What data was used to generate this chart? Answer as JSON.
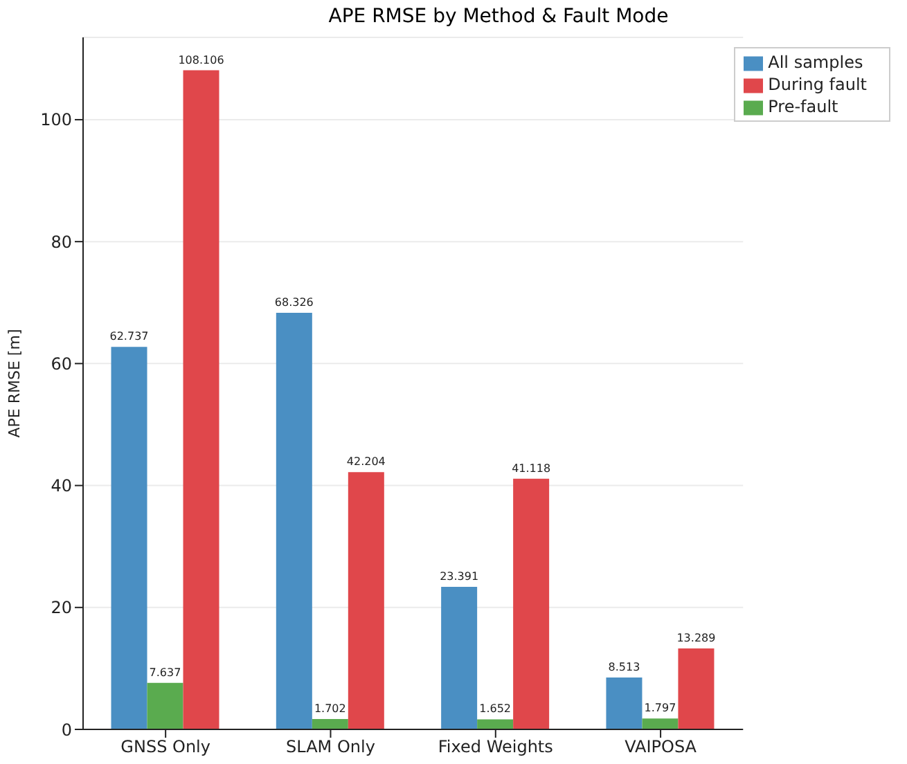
{
  "chart_data": {
    "type": "bar",
    "title": "APE RMSE by Method & Fault Mode",
    "ylabel": "APE RMSE [m]",
    "categories": [
      "GNSS Only",
      "SLAM Only",
      "Fixed Weights",
      "VAIPOSA"
    ],
    "series": [
      {
        "name": "All samples",
        "color": "#4a8fc3",
        "values": [
          62.737,
          68.326,
          23.391,
          8.513
        ]
      },
      {
        "name": "Pre-fault",
        "color": "#5aab4f",
        "values": [
          7.637,
          1.702,
          1.652,
          1.797
        ]
      },
      {
        "name": "During fault",
        "color": "#e0474b",
        "values": [
          108.106,
          42.204,
          41.118,
          13.289
        ]
      }
    ],
    "ylim": [
      0,
      113.5
    ],
    "yticks": [
      0,
      20,
      40,
      60,
      80,
      100
    ],
    "grid": "y",
    "legend": "top right",
    "data_labels": true
  }
}
